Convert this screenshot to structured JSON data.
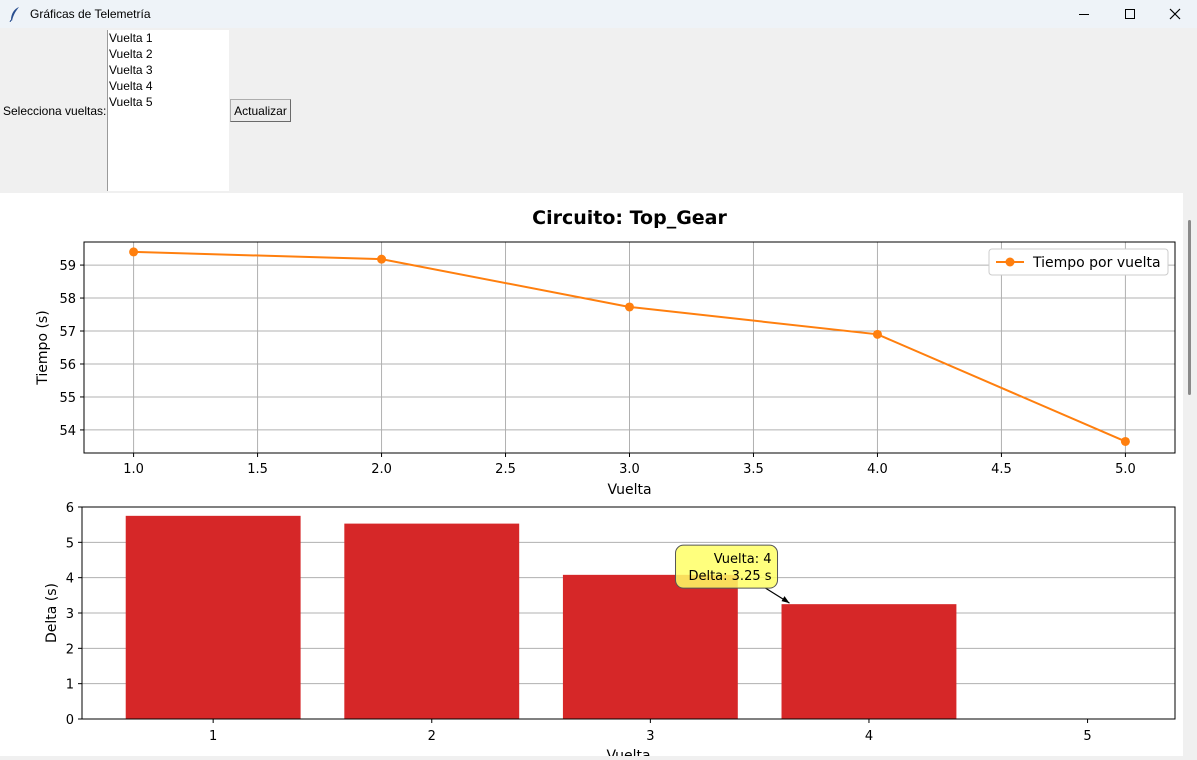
{
  "window": {
    "title": "Gráficas de Telemetría",
    "controls": [
      "minimize-icon",
      "maximize-icon",
      "close-icon"
    ]
  },
  "toolbar": {
    "select_label": "Selecciona vueltas:",
    "laps": [
      "Vuelta 1",
      "Vuelta 2",
      "Vuelta 3",
      "Vuelta 4",
      "Vuelta 5"
    ],
    "update_button": "Actualizar"
  },
  "chart_data": [
    {
      "type": "line",
      "title": "Circuito: Top_Gear",
      "xlabel": "Vuelta",
      "ylabel": "Tiempo (s)",
      "xlim": [
        0.8,
        5.2
      ],
      "ylim": [
        53.3,
        59.7
      ],
      "xticks": [
        1.0,
        1.5,
        2.0,
        2.5,
        3.0,
        3.5,
        4.0,
        4.5,
        5.0
      ],
      "xtick_labels": [
        "1.0",
        "1.5",
        "2.0",
        "2.5",
        "3.0",
        "3.5",
        "4.0",
        "4.5",
        "5.0"
      ],
      "yticks": [
        54,
        55,
        56,
        57,
        58,
        59
      ],
      "ytick_labels": [
        "54",
        "55",
        "56",
        "57",
        "58",
        "59"
      ],
      "grid": true,
      "legend": "top-right",
      "series": [
        {
          "name": "Tiempo por vuelta",
          "x": [
            1,
            2,
            3,
            4,
            5
          ],
          "y": [
            59.4,
            59.18,
            57.73,
            56.9,
            53.65
          ],
          "color": "#ff7f0e"
        }
      ]
    },
    {
      "type": "bar",
      "xlabel": "Vuelta",
      "ylabel": "Delta (s)",
      "ylim": [
        0,
        6.0
      ],
      "categories": [
        "1",
        "2",
        "3",
        "4",
        "5"
      ],
      "values": [
        5.75,
        5.53,
        4.08,
        3.25,
        0
      ],
      "yticks": [
        0,
        1,
        2,
        3,
        4,
        5,
        6
      ],
      "ytick_labels": [
        "0",
        "1",
        "2",
        "3",
        "4",
        "5",
        "6"
      ],
      "grid": true,
      "color": "#d62728",
      "annotation": {
        "lines": [
          "Vuelta: 4",
          "Delta: 3.25 s"
        ],
        "target_category": "4",
        "target_value": 3.25
      }
    }
  ]
}
